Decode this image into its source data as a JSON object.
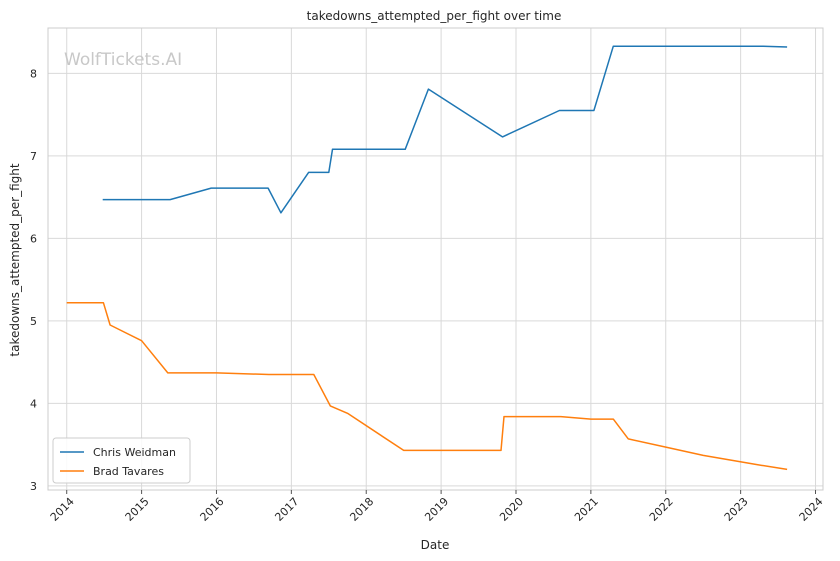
{
  "chart_data": {
    "type": "line",
    "title": "takedowns_attempted_per_fight over time",
    "xlabel": "Date",
    "ylabel": "takedowns_attempted_per_fight",
    "watermark": "WolfTickets.AI",
    "x_ticks": [
      "2014",
      "2015",
      "2016",
      "2017",
      "2018",
      "2019",
      "2020",
      "2021",
      "2022",
      "2023",
      "2024"
    ],
    "y_ticks": [
      "3",
      "4",
      "5",
      "6",
      "7",
      "8"
    ],
    "xlim": [
      2013.75,
      2024.1
    ],
    "ylim": [
      2.95,
      8.55
    ],
    "grid": true,
    "legend_position": "lower-left",
    "series": [
      {
        "name": "Chris Weidman",
        "color": "#1f77b4",
        "points": [
          [
            2014.48,
            6.47
          ],
          [
            2015.38,
            6.47
          ],
          [
            2015.93,
            6.61
          ],
          [
            2016.69,
            6.61
          ],
          [
            2016.86,
            6.31
          ],
          [
            2017.23,
            6.8
          ],
          [
            2017.5,
            6.8
          ],
          [
            2017.55,
            7.08
          ],
          [
            2018.52,
            7.08
          ],
          [
            2018.83,
            7.81
          ],
          [
            2019.82,
            7.23
          ],
          [
            2020.58,
            7.55
          ],
          [
            2021.04,
            7.55
          ],
          [
            2021.3,
            8.33
          ],
          [
            2023.3,
            8.33
          ],
          [
            2023.62,
            8.32
          ]
        ]
      },
      {
        "name": "Brad Tavares",
        "color": "#ff7f0e",
        "points": [
          [
            2014.0,
            5.22
          ],
          [
            2014.49,
            5.22
          ],
          [
            2014.58,
            4.95
          ],
          [
            2015.0,
            4.76
          ],
          [
            2015.35,
            4.37
          ],
          [
            2016.0,
            4.37
          ],
          [
            2016.7,
            4.35
          ],
          [
            2017.3,
            4.35
          ],
          [
            2017.52,
            3.97
          ],
          [
            2017.75,
            3.88
          ],
          [
            2018.5,
            3.43
          ],
          [
            2019.8,
            3.43
          ],
          [
            2019.84,
            3.84
          ],
          [
            2020.6,
            3.84
          ],
          [
            2021.0,
            3.81
          ],
          [
            2021.3,
            3.81
          ],
          [
            2021.5,
            3.57
          ],
          [
            2022.0,
            3.47
          ],
          [
            2022.5,
            3.37
          ],
          [
            2023.2,
            3.26
          ],
          [
            2023.62,
            3.2
          ]
        ]
      }
    ]
  }
}
